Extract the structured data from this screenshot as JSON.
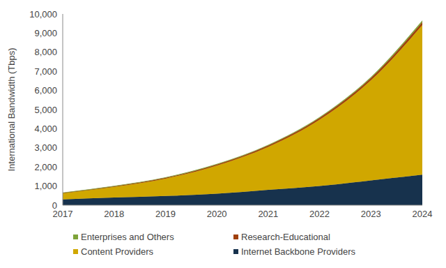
{
  "chart_data": {
    "type": "area",
    "stacked": true,
    "y_label": "International Bandwidth (Tbps)",
    "categories": [
      "2017",
      "2018",
      "2019",
      "2020",
      "2021",
      "2022",
      "2023",
      "2024"
    ],
    "series": [
      {
        "name": "Enterprises and Others",
        "color": "#7ea33a",
        "values": [
          10,
          15,
          20,
          25,
          30,
          40,
          50,
          80
        ]
      },
      {
        "name": "Research-Educational",
        "color": "#a0400c",
        "values": [
          20,
          30,
          40,
          50,
          70,
          90,
          120,
          150
        ]
      },
      {
        "name": "Content Providers",
        "color": "#d0a700",
        "values": [
          320,
          555,
          910,
          1475,
          2250,
          3470,
          5230,
          7820
        ]
      },
      {
        "name": "Internet Backbone Providers",
        "color": "#17324d",
        "values": [
          300,
          400,
          480,
          600,
          800,
          1000,
          1300,
          1600
        ]
      }
    ],
    "ylim": [
      0,
      10000
    ],
    "yticks": [
      0,
      {
        "value": 1000,
        "label": "1,000"
      },
      {
        "value": 2000,
        "label": "2,000"
      },
      {
        "value": 3000,
        "label": "3,000"
      },
      {
        "value": 4000,
        "label": "4,000"
      },
      {
        "value": 5000,
        "label": "5,000"
      },
      {
        "value": 6000,
        "label": "6,000"
      },
      {
        "value": 7000,
        "label": "7,000"
      },
      {
        "value": 8000,
        "label": "8,000"
      },
      {
        "value": 9000,
        "label": "9,000"
      },
      {
        "value": 10000,
        "label": "10,000"
      }
    ],
    "legend": "bottom",
    "grid": false
  }
}
